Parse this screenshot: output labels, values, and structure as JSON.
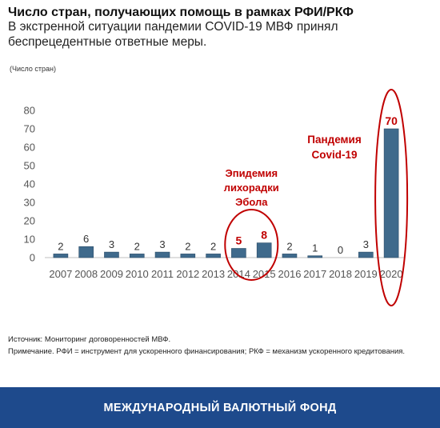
{
  "title": "Число стран, получающих помощь в рамках РФИ/РКФ",
  "subtitle": "В экстренной ситуации пандемии COVID-19 МВФ принял беспрецедентные ответные меры.",
  "unit_label": "(Число стран)",
  "source": "Источник: Мониторинг договоренностей МВФ.",
  "note": "Примечание. РФИ = инструмент для ускоренного финансирования; РКФ = механизм ускоренного кредитования.",
  "footer": "МЕЖДУНАРОДНЫЙ ВАЛЮТНЫЙ ФОНД",
  "colors": {
    "bar": "#3f6a8c",
    "highlight": "#c00000",
    "footer": "#1e4a8c"
  },
  "chart_data": {
    "type": "bar",
    "categories": [
      "2007",
      "2008",
      "2009",
      "2010",
      "2011",
      "2012",
      "2013",
      "2014",
      "2015",
      "2016",
      "2017",
      "2018",
      "2019",
      "2020"
    ],
    "values": [
      2,
      6,
      3,
      2,
      3,
      2,
      2,
      5,
      8,
      2,
      1,
      0,
      3,
      70
    ],
    "ylim": [
      0,
      80
    ],
    "yticks": [
      0,
      10,
      20,
      30,
      40,
      50,
      60,
      70,
      80
    ],
    "highlighted_categories": [
      "2014",
      "2015",
      "2020"
    ],
    "annotations": [
      {
        "text": "Эпидемия лихорадки Эбола",
        "lines": [
          "Эпидемия",
          "лихорадки",
          "Эбола"
        ],
        "categories": [
          "2014",
          "2015"
        ]
      },
      {
        "text": "Пандемия Covid-19",
        "lines": [
          "Пандемия",
          "Covid-19"
        ],
        "categories": [
          "2020"
        ]
      }
    ],
    "grid": false,
    "legend": "none"
  }
}
